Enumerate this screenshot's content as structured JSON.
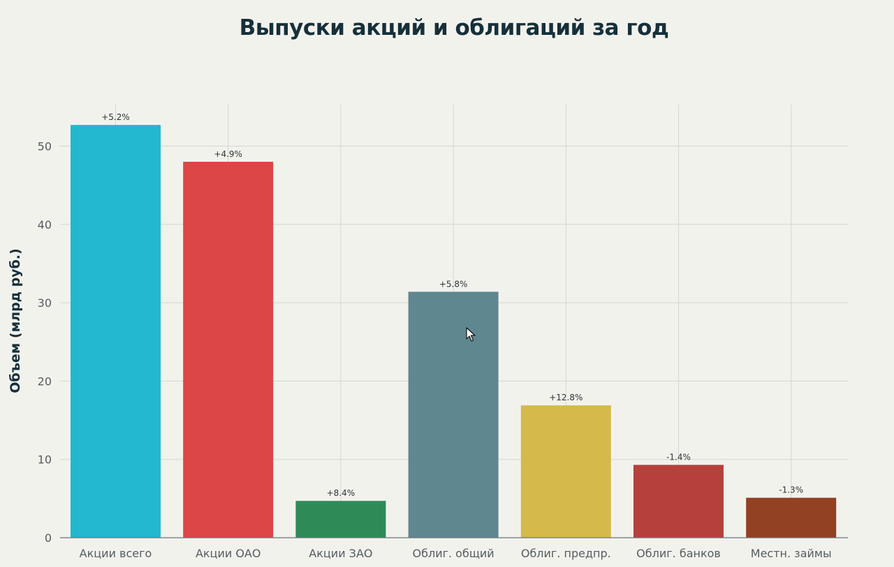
{
  "chart_data": {
    "type": "bar",
    "title": "Выпуски акций и облигаций за год",
    "xlabel": "",
    "ylabel": "Объем (млрд руб.)",
    "ylim": [
      0,
      55
    ],
    "yticks": [
      0,
      10,
      20,
      30,
      40,
      50
    ],
    "grid": true,
    "categories": [
      "Акции всего",
      "Акции ОАО",
      "Акции ЗАО",
      "Облиг. общий",
      "Облиг. предпр.",
      "Облиг. банков",
      "Местн. займы"
    ],
    "values": [
      52.7,
      48.0,
      4.7,
      31.4,
      16.9,
      9.3,
      5.1
    ],
    "data_labels": [
      "+5.2%",
      "+4.9%",
      "+8.4%",
      "+5.8%",
      "+12.8%",
      "-1.4%",
      "-1.3%"
    ],
    "colors": [
      "#22b8cf",
      "#dc4646",
      "#2e8b57",
      "#5f8790",
      "#d3ba4b",
      "#b5413b",
      "#924122"
    ]
  }
}
